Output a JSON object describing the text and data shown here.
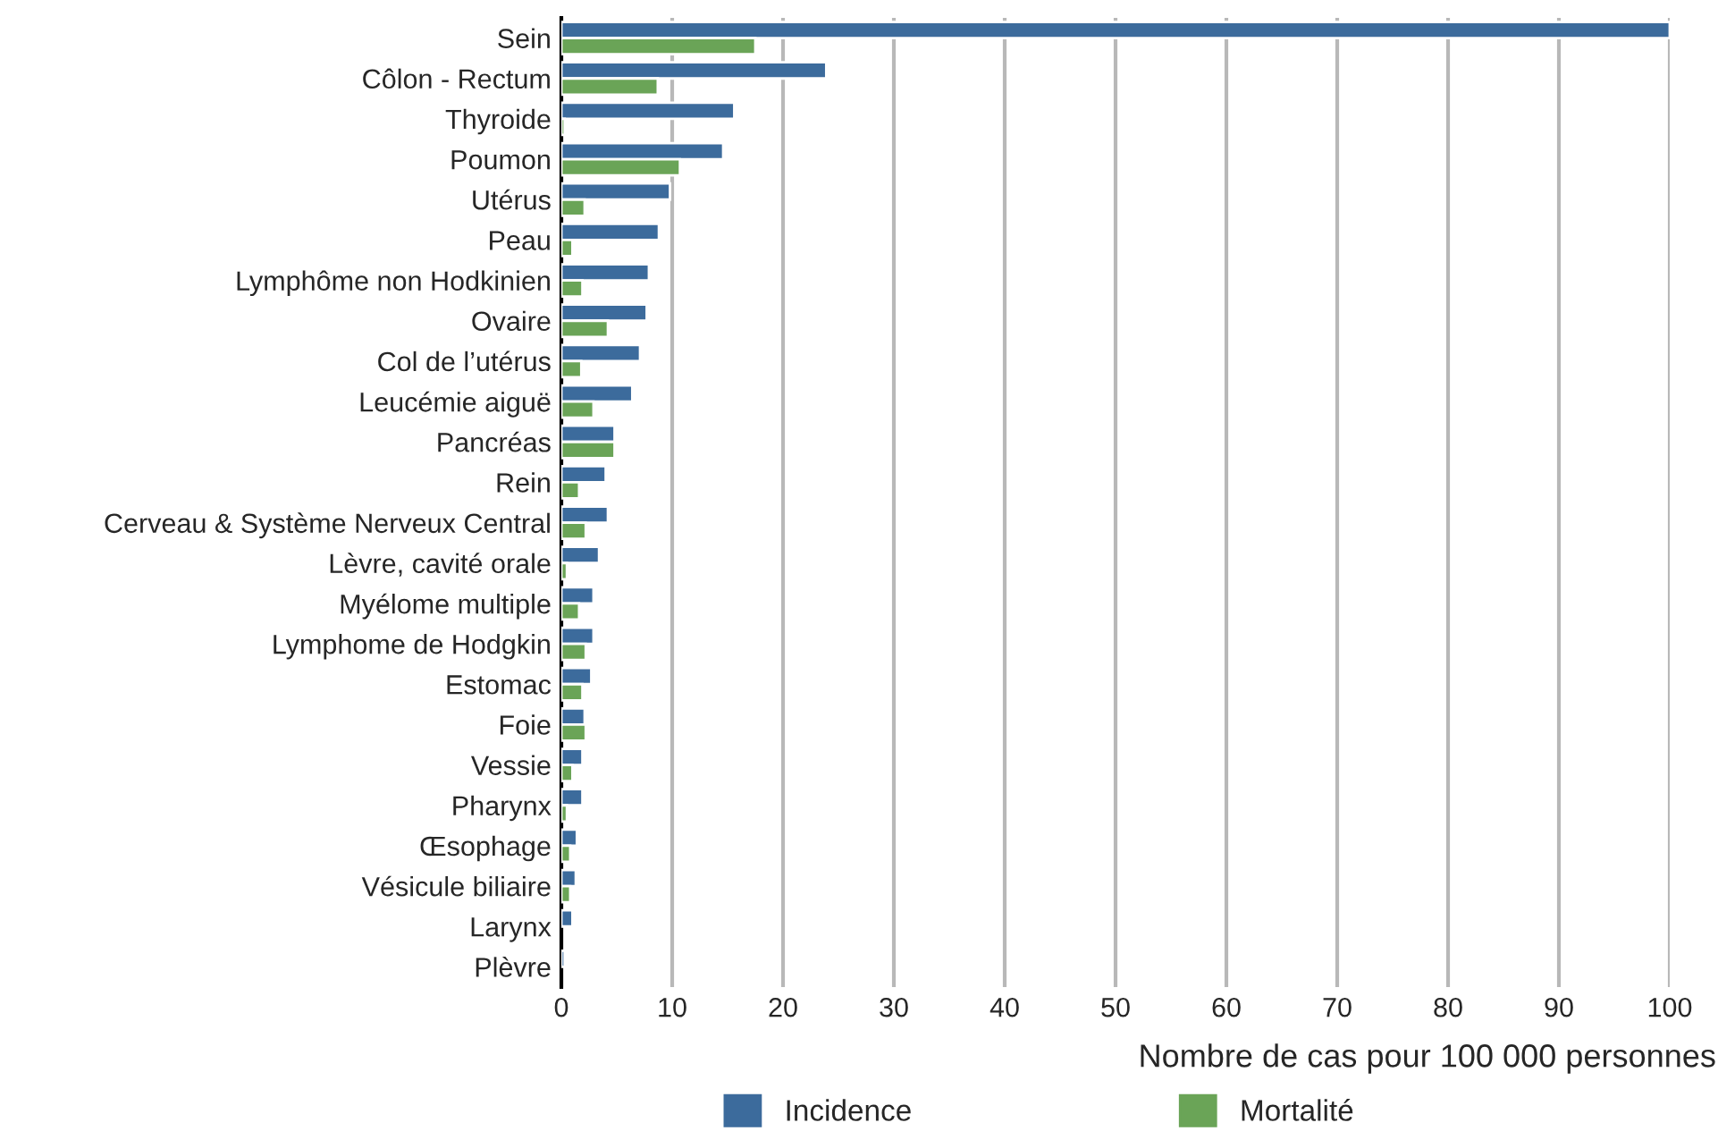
{
  "chart_data": {
    "type": "bar",
    "orientation": "horizontal",
    "categories": [
      "Sein",
      "Côlon - Rectum",
      "Thyroide",
      "Poumon",
      "Utérus",
      "Peau",
      "Lymphôme non Hodkinien",
      "Ovaire",
      "Col de l’utérus",
      "Leucémie aiguë",
      "Pancréas",
      "Rein",
      "Cerveau & Système Nerveux Central",
      "Lèvre, cavité orale",
      "Myélome multiple",
      "Lymphome de Hodgkin",
      "Estomac",
      "Foie",
      "Vessie",
      "Pharynx",
      "Œsophage",
      "Vésicule biliaire",
      "Larynx",
      "Plèvre"
    ],
    "series": [
      {
        "name": "Incidence",
        "color": "#3c6b9c",
        "values": [
          100,
          23.9,
          15.6,
          14.6,
          9.8,
          8.8,
          7.9,
          7.7,
          7.1,
          6.4,
          4.8,
          4.0,
          4.2,
          3.4,
          2.9,
          2.9,
          2.7,
          2.1,
          1.9,
          1.9,
          1.4,
          1.3,
          1.0,
          0.3
        ]
      },
      {
        "name": "Mortalité",
        "color": "#6aa457",
        "values": [
          17.5,
          8.7,
          0.3,
          10.7,
          2.1,
          1.0,
          1.9,
          4.2,
          1.8,
          2.9,
          4.8,
          1.6,
          2.2,
          0.5,
          1.6,
          2.2,
          1.9,
          2.2,
          1.0,
          0.5,
          0.8,
          0.8,
          null,
          null
        ]
      }
    ],
    "xlim": [
      0,
      100
    ],
    "xticks": [
      0,
      10,
      20,
      30,
      40,
      50,
      60,
      70,
      80,
      90,
      100
    ],
    "xlabel": "Nombre de cas pour 100 000 personnes",
    "grid": "x",
    "legend": "bottom"
  }
}
